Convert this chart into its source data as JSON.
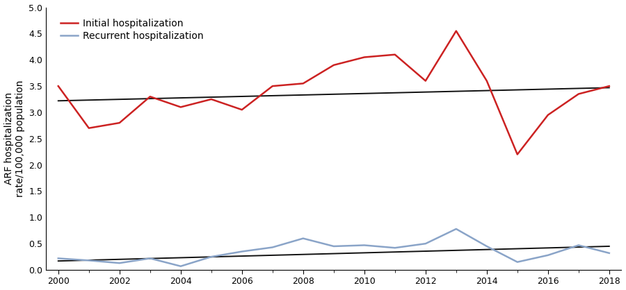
{
  "years": [
    2000,
    2001,
    2002,
    2003,
    2004,
    2005,
    2006,
    2007,
    2008,
    2009,
    2010,
    2011,
    2012,
    2013,
    2014,
    2015,
    2016,
    2017,
    2018
  ],
  "initial": [
    3.5,
    2.7,
    2.8,
    3.3,
    3.1,
    3.25,
    3.05,
    3.5,
    3.55,
    3.9,
    4.05,
    4.1,
    3.6,
    4.55,
    3.6,
    2.2,
    2.95,
    3.35,
    3.5
  ],
  "recurrent": [
    0.22,
    0.18,
    0.13,
    0.22,
    0.07,
    0.25,
    0.35,
    0.43,
    0.6,
    0.45,
    0.47,
    0.42,
    0.5,
    0.78,
    0.45,
    0.15,
    0.28,
    0.47,
    0.32
  ],
  "initial_trend": [
    3.22,
    3.47
  ],
  "recurrent_trend": [
    0.17,
    0.45
  ],
  "trend_years": [
    2000,
    2018
  ],
  "initial_color": "#cc2222",
  "recurrent_color": "#8aa4c8",
  "trend_color": "#111111",
  "ylabel": "ARF hospitalization\nrate/100,000 population",
  "ylim": [
    0.0,
    5.0
  ],
  "yticks": [
    0.0,
    0.5,
    1.0,
    1.5,
    2.0,
    2.5,
    3.0,
    3.5,
    4.0,
    4.5,
    5.0
  ],
  "xlim": [
    1999.6,
    2018.4
  ],
  "xticks_major": [
    2000,
    2002,
    2004,
    2006,
    2008,
    2010,
    2012,
    2014,
    2016,
    2018
  ],
  "xticks_minor": [
    2001,
    2003,
    2005,
    2007,
    2009,
    2011,
    2013,
    2015,
    2017
  ],
  "legend_initial": "Initial hospitalization",
  "legend_recurrent": "Recurrent hospitalization",
  "linewidth": 1.8,
  "trend_linewidth": 1.4
}
